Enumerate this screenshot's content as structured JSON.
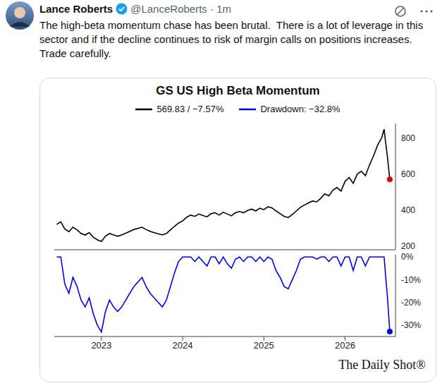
{
  "tweet": {
    "name": "Lance Roberts",
    "meta": "@LanceRoberts · 1m",
    "text": "The high-beta momentum chase has been brutal.  There is a lot of leverage in this sector and if the decline continues to risk of margin calls on positions increases. Trade carefully."
  },
  "card": {
    "source": "The Daily Shot®"
  },
  "chart_data": [
    {
      "type": "line",
      "title": "GS US High Beta Momentum",
      "legend": "top",
      "grid": false,
      "tick_labels": "y",
      "x": [
        2022.45,
        2022.5,
        2022.55,
        2022.6,
        2022.65,
        2022.7,
        2022.75,
        2022.8,
        2022.85,
        2022.9,
        2022.95,
        2023.0,
        2023.05,
        2023.1,
        2023.15,
        2023.2,
        2023.25,
        2023.3,
        2023.35,
        2023.4,
        2023.45,
        2023.5,
        2023.55,
        2023.6,
        2023.65,
        2023.7,
        2023.75,
        2023.8,
        2023.85,
        2023.9,
        2023.95,
        2024.0,
        2024.05,
        2024.1,
        2024.15,
        2024.2,
        2024.25,
        2024.3,
        2024.35,
        2024.4,
        2024.45,
        2024.5,
        2024.55,
        2024.6,
        2024.65,
        2024.7,
        2024.75,
        2024.8,
        2024.85,
        2024.9,
        2024.95,
        2025.0,
        2025.05,
        2025.1,
        2025.15,
        2025.2,
        2025.25,
        2025.3,
        2025.35,
        2025.4,
        2025.45,
        2025.5,
        2025.55,
        2025.6,
        2025.65,
        2025.7,
        2025.75,
        2025.8,
        2025.85,
        2025.9,
        2025.95,
        2026.0,
        2026.05,
        2026.1,
        2026.15,
        2026.2,
        2026.25,
        2026.3,
        2026.35,
        2026.4,
        2026.45,
        2026.48,
        2026.5,
        2026.52,
        2026.55
      ],
      "xlim": [
        2022.42,
        2026.62
      ],
      "ylim": [
        180,
        880
      ],
      "yticks": [
        200,
        400,
        600,
        800
      ],
      "series": [
        {
          "name": "569.83 / −7.57%",
          "color": "#000000",
          "values": [
            320,
            335,
            295,
            280,
            305,
            290,
            270,
            262,
            275,
            250,
            235,
            226,
            255,
            270,
            262,
            255,
            262,
            272,
            282,
            292,
            298,
            305,
            292,
            282,
            275,
            268,
            262,
            270,
            290,
            310,
            328,
            340,
            360,
            372,
            365,
            378,
            370,
            362,
            380,
            385,
            372,
            388,
            378,
            368,
            385,
            392,
            385,
            398,
            405,
            395,
            410,
            402,
            418,
            412,
            395,
            380,
            365,
            358,
            375,
            395,
            415,
            428,
            440,
            450,
            445,
            465,
            490,
            478,
            510,
            525,
            505,
            560,
            580,
            548,
            600,
            615,
            590,
            650,
            700,
            760,
            800,
            848,
            770,
            700,
            569.83
          ]
        }
      ]
    },
    {
      "type": "line",
      "legend": "top",
      "grid": false,
      "tick_labels": true,
      "x": [
        2022.45,
        2022.5,
        2022.55,
        2022.6,
        2022.65,
        2022.7,
        2022.75,
        2022.8,
        2022.85,
        2022.9,
        2022.95,
        2023.0,
        2023.05,
        2023.1,
        2023.15,
        2023.2,
        2023.25,
        2023.3,
        2023.35,
        2023.4,
        2023.45,
        2023.5,
        2023.55,
        2023.6,
        2023.65,
        2023.7,
        2023.75,
        2023.8,
        2023.85,
        2023.9,
        2023.95,
        2024.0,
        2024.05,
        2024.1,
        2024.15,
        2024.2,
        2024.25,
        2024.3,
        2024.35,
        2024.4,
        2024.45,
        2024.5,
        2024.55,
        2024.6,
        2024.65,
        2024.7,
        2024.75,
        2024.8,
        2024.85,
        2024.9,
        2024.95,
        2025.0,
        2025.05,
        2025.1,
        2025.15,
        2025.2,
        2025.25,
        2025.3,
        2025.35,
        2025.4,
        2025.45,
        2025.5,
        2025.55,
        2025.6,
        2025.65,
        2025.7,
        2025.75,
        2025.8,
        2025.85,
        2025.9,
        2025.95,
        2026.0,
        2026.05,
        2026.1,
        2026.15,
        2026.2,
        2026.25,
        2026.3,
        2026.35,
        2026.4,
        2026.45,
        2026.48,
        2026.5,
        2026.52,
        2026.55
      ],
      "xlim": [
        2022.42,
        2026.62
      ],
      "xticks": [
        2023,
        2024,
        2025,
        2026
      ],
      "ylim": [
        -35,
        1
      ],
      "yticks": [
        {
          "value": 0,
          "label": "0%"
        },
        {
          "value": -10,
          "label": "-10%"
        },
        {
          "value": -20,
          "label": "-20%"
        },
        {
          "value": -30,
          "label": "-30%"
        }
      ],
      "series": [
        {
          "name": "Drawdown: −32.8%",
          "color": "#0000ee",
          "values": [
            0,
            0,
            -12,
            -16,
            -9,
            -13,
            -19,
            -22,
            -18,
            -25,
            -30,
            -33,
            -24,
            -19,
            -22,
            -24,
            -22,
            -19,
            -16,
            -13,
            -11,
            -9,
            -13,
            -16,
            -18,
            -20,
            -22,
            -19,
            -13,
            -7,
            -2,
            0,
            0,
            0,
            -2,
            0,
            -2,
            -4,
            0,
            0,
            -3,
            0,
            -3,
            -5,
            -1,
            0,
            -2,
            0,
            0,
            -2,
            0,
            -2,
            0,
            -1,
            -6,
            -9,
            -13,
            -14,
            -10,
            -6,
            -1,
            0,
            0,
            0,
            -1,
            0,
            0,
            -2,
            0,
            0,
            -4,
            0,
            0,
            -6,
            0,
            0,
            -4,
            0,
            0,
            0,
            0,
            0,
            -9,
            -17,
            -32.8
          ]
        }
      ]
    }
  ]
}
